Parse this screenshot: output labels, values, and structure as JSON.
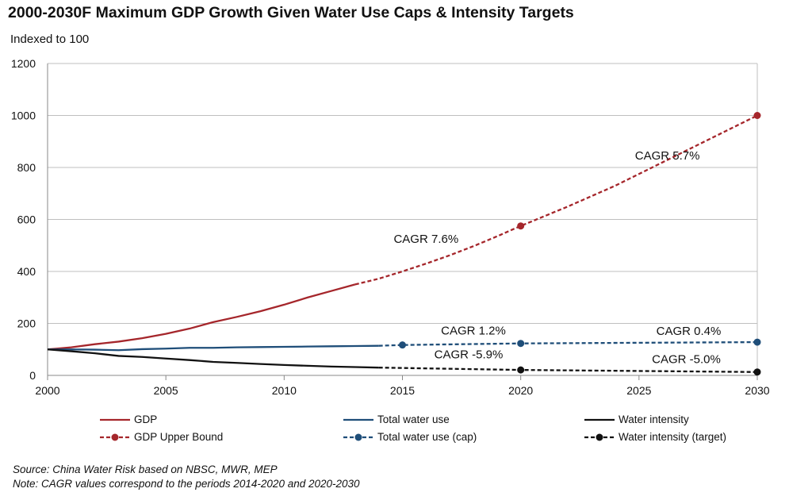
{
  "title": "2000-2030F  Maximum GDP Growth Given Water Use Caps & Intensity Targets",
  "subtitle": "Indexed to 100",
  "source": "Source: China Water Risk based on NBSC, MWR, MEP",
  "note": "Note: CAGR values correspond to the periods 2014-2020  and 2020-2030",
  "colors": {
    "gdp": "#a5262b",
    "water": "#1f4e79",
    "intensity": "#111111",
    "grid": "#bfbfbf"
  },
  "chart_data": {
    "type": "line",
    "xlim": [
      2000,
      2030
    ],
    "ylim": [
      0,
      1200
    ],
    "x_ticks": [
      2000,
      2005,
      2010,
      2015,
      2020,
      2025,
      2030
    ],
    "y_ticks": [
      0,
      200,
      400,
      600,
      800,
      1000,
      1200
    ],
    "grid": "horizontal",
    "legend_position": "bottom",
    "series": [
      {
        "name": "GDP",
        "color_key": "gdp",
        "dashed": false,
        "markers": false,
        "x": [
          2000,
          2001,
          2002,
          2003,
          2004,
          2005,
          2006,
          2007,
          2008,
          2009,
          2010,
          2011,
          2012,
          2013
        ],
        "y": [
          100,
          108,
          120,
          130,
          143,
          160,
          180,
          205,
          225,
          247,
          272,
          300,
          325,
          350
        ]
      },
      {
        "name": "GDP Upper Bound",
        "color_key": "gdp",
        "dashed": true,
        "markers": true,
        "x": [
          2013,
          2014,
          2015,
          2016,
          2017,
          2018,
          2019,
          2020,
          2022,
          2024,
          2026,
          2028,
          2030
        ],
        "y": [
          350,
          372,
          400,
          430,
          462,
          497,
          535,
          575,
          650,
          730,
          820,
          910,
          1000
        ],
        "marker_x": [
          2020,
          2030
        ]
      },
      {
        "name": "Total water use",
        "color_key": "water",
        "dashed": false,
        "markers": false,
        "x": [
          2000,
          2001,
          2002,
          2003,
          2004,
          2005,
          2006,
          2007,
          2008,
          2009,
          2010,
          2011,
          2012,
          2013,
          2014
        ],
        "y": [
          100,
          100,
          99,
          97,
          101,
          103,
          106,
          106,
          108,
          109,
          110,
          111,
          112,
          113,
          114
        ]
      },
      {
        "name": "Total water use (cap)",
        "color_key": "water",
        "dashed": true,
        "markers": true,
        "x": [
          2014,
          2015,
          2020,
          2030
        ],
        "y": [
          114,
          117,
          123,
          128
        ],
        "marker_x": [
          2015,
          2020,
          2030
        ]
      },
      {
        "name": "Water intensity",
        "color_key": "intensity",
        "dashed": false,
        "markers": false,
        "x": [
          2000,
          2001,
          2002,
          2003,
          2004,
          2005,
          2006,
          2007,
          2008,
          2009,
          2010,
          2011,
          2012,
          2013,
          2014
        ],
        "y": [
          100,
          93,
          85,
          75,
          71,
          65,
          59,
          52,
          48,
          44,
          40,
          37,
          34,
          32,
          30
        ]
      },
      {
        "name": "Water intensity (target)",
        "color_key": "intensity",
        "dashed": true,
        "markers": true,
        "x": [
          2014,
          2020,
          2030
        ],
        "y": [
          30,
          21,
          13
        ],
        "marker_x": [
          2020,
          2030
        ]
      }
    ],
    "annotations": [
      {
        "text": "CAGR 5.7%",
        "x": 2026.2,
        "y": 830
      },
      {
        "text": "CAGR 7.6%",
        "x": 2016.0,
        "y": 510
      },
      {
        "text": "CAGR 1.2%",
        "x": 2018.0,
        "y": 158
      },
      {
        "text": "CAGR 0.4%",
        "x": 2027.1,
        "y": 155
      },
      {
        "text": "CAGR -5.9%",
        "x": 2017.8,
        "y": 65
      },
      {
        "text": "CAGR -5.0%",
        "x": 2027.0,
        "y": 48
      }
    ]
  },
  "legend": [
    {
      "label": "GDP",
      "series": 0
    },
    {
      "label": "Total water use",
      "series": 2
    },
    {
      "label": "Water intensity",
      "series": 4
    },
    {
      "label": "GDP Upper Bound",
      "series": 1
    },
    {
      "label": "Total water use (cap)",
      "series": 3
    },
    {
      "label": "Water intensity (target)",
      "series": 5
    }
  ]
}
